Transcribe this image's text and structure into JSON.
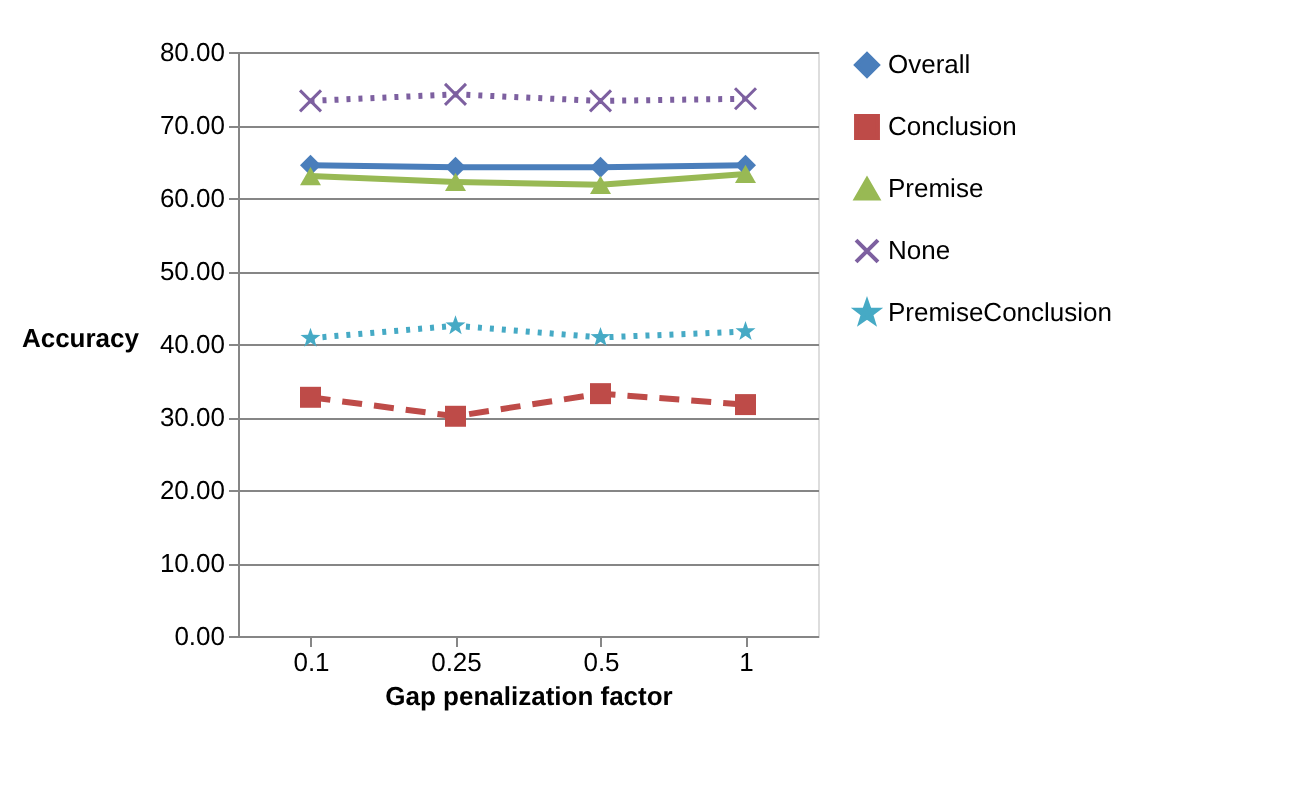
{
  "chart_data": {
    "type": "line",
    "xlabel": "Gap penalization factor",
    "ylabel": "Accuracy",
    "categories": [
      "0.1",
      "0.25",
      "0.5",
      "1"
    ],
    "series": [
      {
        "name": "Overall",
        "color": "#4a7ebb",
        "marker": "diamond",
        "line_style": "solid",
        "values": [
          64.5,
          64.2,
          64.2,
          64.5
        ]
      },
      {
        "name": "Conclusion",
        "color": "#be4b48",
        "marker": "square",
        "line_style": "dashed",
        "values": [
          32.7,
          30.1,
          33.2,
          31.7
        ]
      },
      {
        "name": "Premise",
        "color": "#98b954",
        "marker": "triangle",
        "line_style": "solid",
        "values": [
          63.0,
          62.2,
          61.8,
          63.3
        ]
      },
      {
        "name": "None",
        "color": "#7d60a0",
        "marker": "cross",
        "line_style": "dotted",
        "values": [
          73.3,
          74.2,
          73.3,
          73.6
        ]
      },
      {
        "name": "PremiseConclusion",
        "color": "#46aac5",
        "marker": "star",
        "line_style": "dotted",
        "values": [
          40.8,
          42.5,
          40.9,
          41.7
        ]
      }
    ],
    "ylim": [
      0,
      80
    ],
    "yticks": [
      {
        "value": 0,
        "label": "0.00"
      },
      {
        "value": 10,
        "label": "10.00"
      },
      {
        "value": 20,
        "label": "20.00"
      },
      {
        "value": 30,
        "label": "30.00"
      },
      {
        "value": 40,
        "label": "40.00"
      },
      {
        "value": 50,
        "label": "50.00"
      },
      {
        "value": 60,
        "label": "60.00"
      },
      {
        "value": 70,
        "label": "70.00"
      },
      {
        "value": 80,
        "label": "80.00"
      }
    ],
    "grid": "y",
    "legend": "right"
  }
}
